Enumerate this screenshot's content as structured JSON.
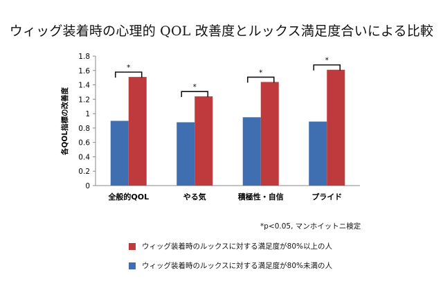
{
  "chart_data": {
    "type": "bar",
    "title": "ウィッグ装着時の心理的 QOL 改善度とルックス満足度合いによる比較",
    "ylabel": "各QOL指標の改善度",
    "xlabel": "",
    "ylim": [
      0,
      1.8
    ],
    "yticks": [
      0,
      0.2,
      0.4,
      0.6,
      0.8,
      1,
      1.2,
      1.4,
      1.6,
      1.8
    ],
    "ytick_labels": [
      "0",
      "0.2",
      "0.4",
      "0.6",
      "0.8",
      "1",
      "1.2",
      "1.4",
      "1.6",
      "1.8"
    ],
    "categories": [
      "全般的QOL",
      "やる気",
      "積極性・自信",
      "プライド"
    ],
    "series": [
      {
        "name": "ウィッグ装着時のルックスに対する満足度が80%未満の人",
        "color": "#3f6fb0",
        "values": [
          0.9,
          0.88,
          0.95,
          0.89
        ]
      },
      {
        "name": "ウィッグ装着時のルックスに対する満足度が80%以上の人",
        "color": "#bf3a3c",
        "values": [
          1.51,
          1.24,
          1.44,
          1.61
        ]
      }
    ],
    "significance_marker": "*",
    "footnote": "*p<0.05, マンホイットニ検定",
    "grid": false,
    "legend_order": [
      1,
      0
    ]
  }
}
